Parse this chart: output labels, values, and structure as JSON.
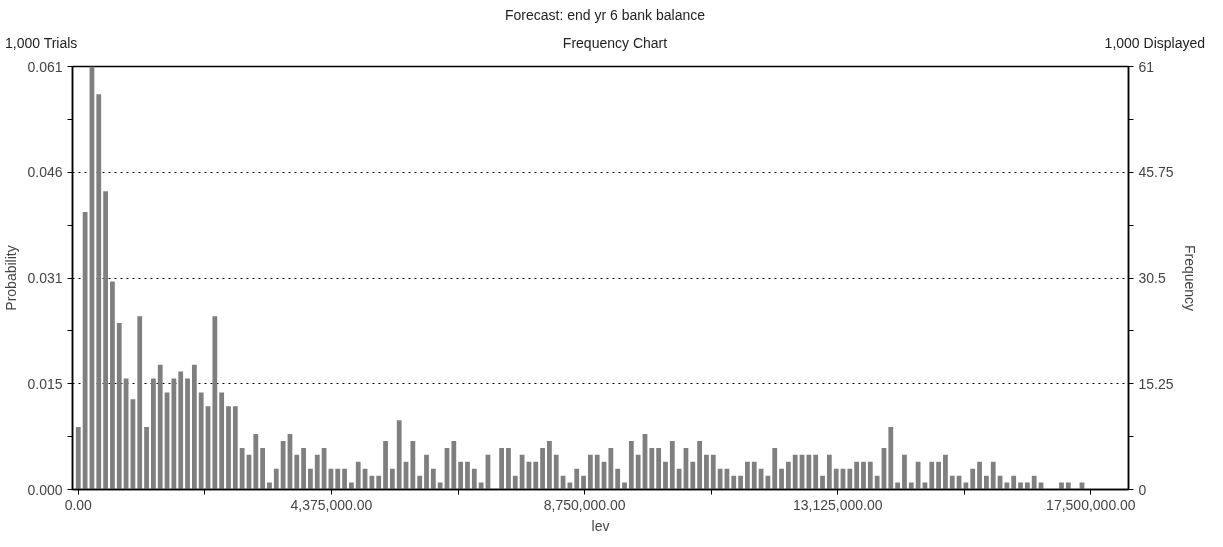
{
  "chart_data": {
    "type": "histogram",
    "title": "Forecast: end yr 6 bank balance",
    "subtitle": "Frequency Chart",
    "xlabel": "lev",
    "ylabel": "Probability",
    "y2label": "Frequency",
    "annotations": [
      "1,000 Trials",
      "1,000 Displayed"
    ],
    "bins": [
      -59000,
      59000,
      177000,
      295000,
      413000,
      531000,
      649000,
      767000,
      885000,
      1003000,
      1121000,
      1239000,
      1357000,
      1475000,
      1593000,
      1711000,
      1829000,
      1947000,
      2065000,
      2183000,
      2301000,
      2419000,
      2537000,
      2655000,
      2773000,
      2891000,
      3009000,
      3127000,
      3245000,
      3363000,
      3481000,
      3599000,
      3717000,
      3835000,
      3953000,
      4071000,
      4189000,
      4307000,
      4425000,
      4543000,
      4661000,
      4779000,
      4897000,
      5015000,
      5133000,
      5251000,
      5369000,
      5487000,
      5605000,
      5723000,
      5841000,
      5959000,
      6077000,
      6195000,
      6313000,
      6431000,
      6549000,
      6667000,
      6785000,
      6903000,
      7021000,
      7139000,
      7257000,
      7375000,
      7493000,
      7611000,
      7729000,
      7847000,
      7965000,
      8083000,
      8201000,
      8319000,
      8437000,
      8555000,
      8673000,
      8791000,
      8909000,
      9027000,
      9145000,
      9263000,
      9381000,
      9499000,
      9617000,
      9735000,
      9853000,
      9971000,
      10089000,
      10207000,
      10325000,
      10443000,
      10561000,
      10679000,
      10797000,
      10915000,
      11033000,
      11151000,
      11269000,
      11387000,
      11505000,
      11623000,
      11741000,
      11859000,
      11977000,
      12095000,
      12213000,
      12331000,
      12449000,
      12567000,
      12685000,
      12803000,
      12921000,
      13039000,
      13157000,
      13275000,
      13393000,
      13511000,
      13629000,
      13747000,
      13865000,
      13983000,
      14101000,
      14219000,
      14337000,
      14455000,
      14573000,
      14691000,
      14809000,
      14927000,
      15045000,
      15163000,
      15281000,
      15399000,
      15517000,
      15635000,
      15753000,
      15871000,
      15989000,
      16107000,
      16225000,
      16343000,
      16461000,
      16579000,
      16697000,
      16815000,
      16933000,
      17051000,
      17169000,
      17287000,
      17405000
    ],
    "series": [
      {
        "axis": "y2",
        "color": "#7f7f7f",
        "values": [
          9,
          40,
          61,
          57,
          43,
          30,
          24,
          16,
          13,
          25,
          9,
          16,
          18,
          14,
          16,
          17,
          16,
          18,
          14,
          12,
          25,
          14,
          12,
          12,
          6,
          5,
          8,
          6,
          1,
          3,
          7,
          8,
          5,
          6,
          3,
          5,
          6,
          3,
          3,
          3,
          1,
          4,
          3,
          2,
          2,
          7,
          3,
          10,
          4,
          7,
          2,
          5,
          3,
          1,
          6,
          7,
          4,
          4,
          3,
          1,
          5,
          0,
          6,
          6,
          2,
          5,
          4,
          4,
          6,
          7,
          5,
          2,
          1,
          3,
          2,
          5,
          5,
          4,
          6,
          3,
          1,
          7,
          5,
          8,
          6,
          6,
          4,
          7,
          3,
          6,
          4,
          7,
          5,
          5,
          3,
          3,
          2,
          2,
          4,
          4,
          3,
          2,
          6,
          3,
          4,
          5,
          5,
          5,
          5,
          2,
          5,
          3,
          3,
          3,
          4,
          4,
          4,
          2,
          6,
          9,
          1,
          5,
          1,
          4,
          1,
          4,
          4,
          5,
          2,
          2,
          1,
          3,
          4,
          2,
          4,
          2,
          1,
          2,
          1,
          1,
          2,
          1,
          0,
          0,
          1,
          1,
          0,
          1
        ]
      }
    ],
    "xlim": [
      -100000,
      18150000
    ],
    "xticks": [
      {
        "value": 0,
        "label": "0.00"
      },
      {
        "value": 2187500,
        "label": null
      },
      {
        "value": 4375000,
        "label": "4,375,000.00"
      },
      {
        "value": 6562500,
        "label": null
      },
      {
        "value": 8750000,
        "label": "8,750,000.00"
      },
      {
        "value": 10937500,
        "label": null
      },
      {
        "value": 13125000,
        "label": "13,125,000.00"
      },
      {
        "value": 15312500,
        "label": null
      },
      {
        "value": 17500000,
        "label": "17,500,000.00"
      }
    ],
    "ylim": [
      0,
      0.061
    ],
    "yticks": [
      {
        "value": 0,
        "label": "0.000"
      },
      {
        "value": 0.007625,
        "label": null
      },
      {
        "value": 0.01525,
        "label": "0.015"
      },
      {
        "value": 0.022875,
        "label": null
      },
      {
        "value": 0.0305,
        "label": "0.031"
      },
      {
        "value": 0.038125,
        "label": null
      },
      {
        "value": 0.04575,
        "label": "0.046"
      },
      {
        "value": 0.053375,
        "label": null
      },
      {
        "value": 0.061,
        "label": "0.061"
      }
    ],
    "y2lim": [
      0,
      61
    ],
    "y2ticks": [
      0,
      {
        "value": 7.625,
        "label": null
      },
      15.25,
      {
        "value": 22.875,
        "label": null
      },
      30.5,
      {
        "value": 38.125,
        "label": null
      },
      45.75,
      {
        "value": 53.375,
        "label": null
      },
      61
    ],
    "grid": "y"
  }
}
